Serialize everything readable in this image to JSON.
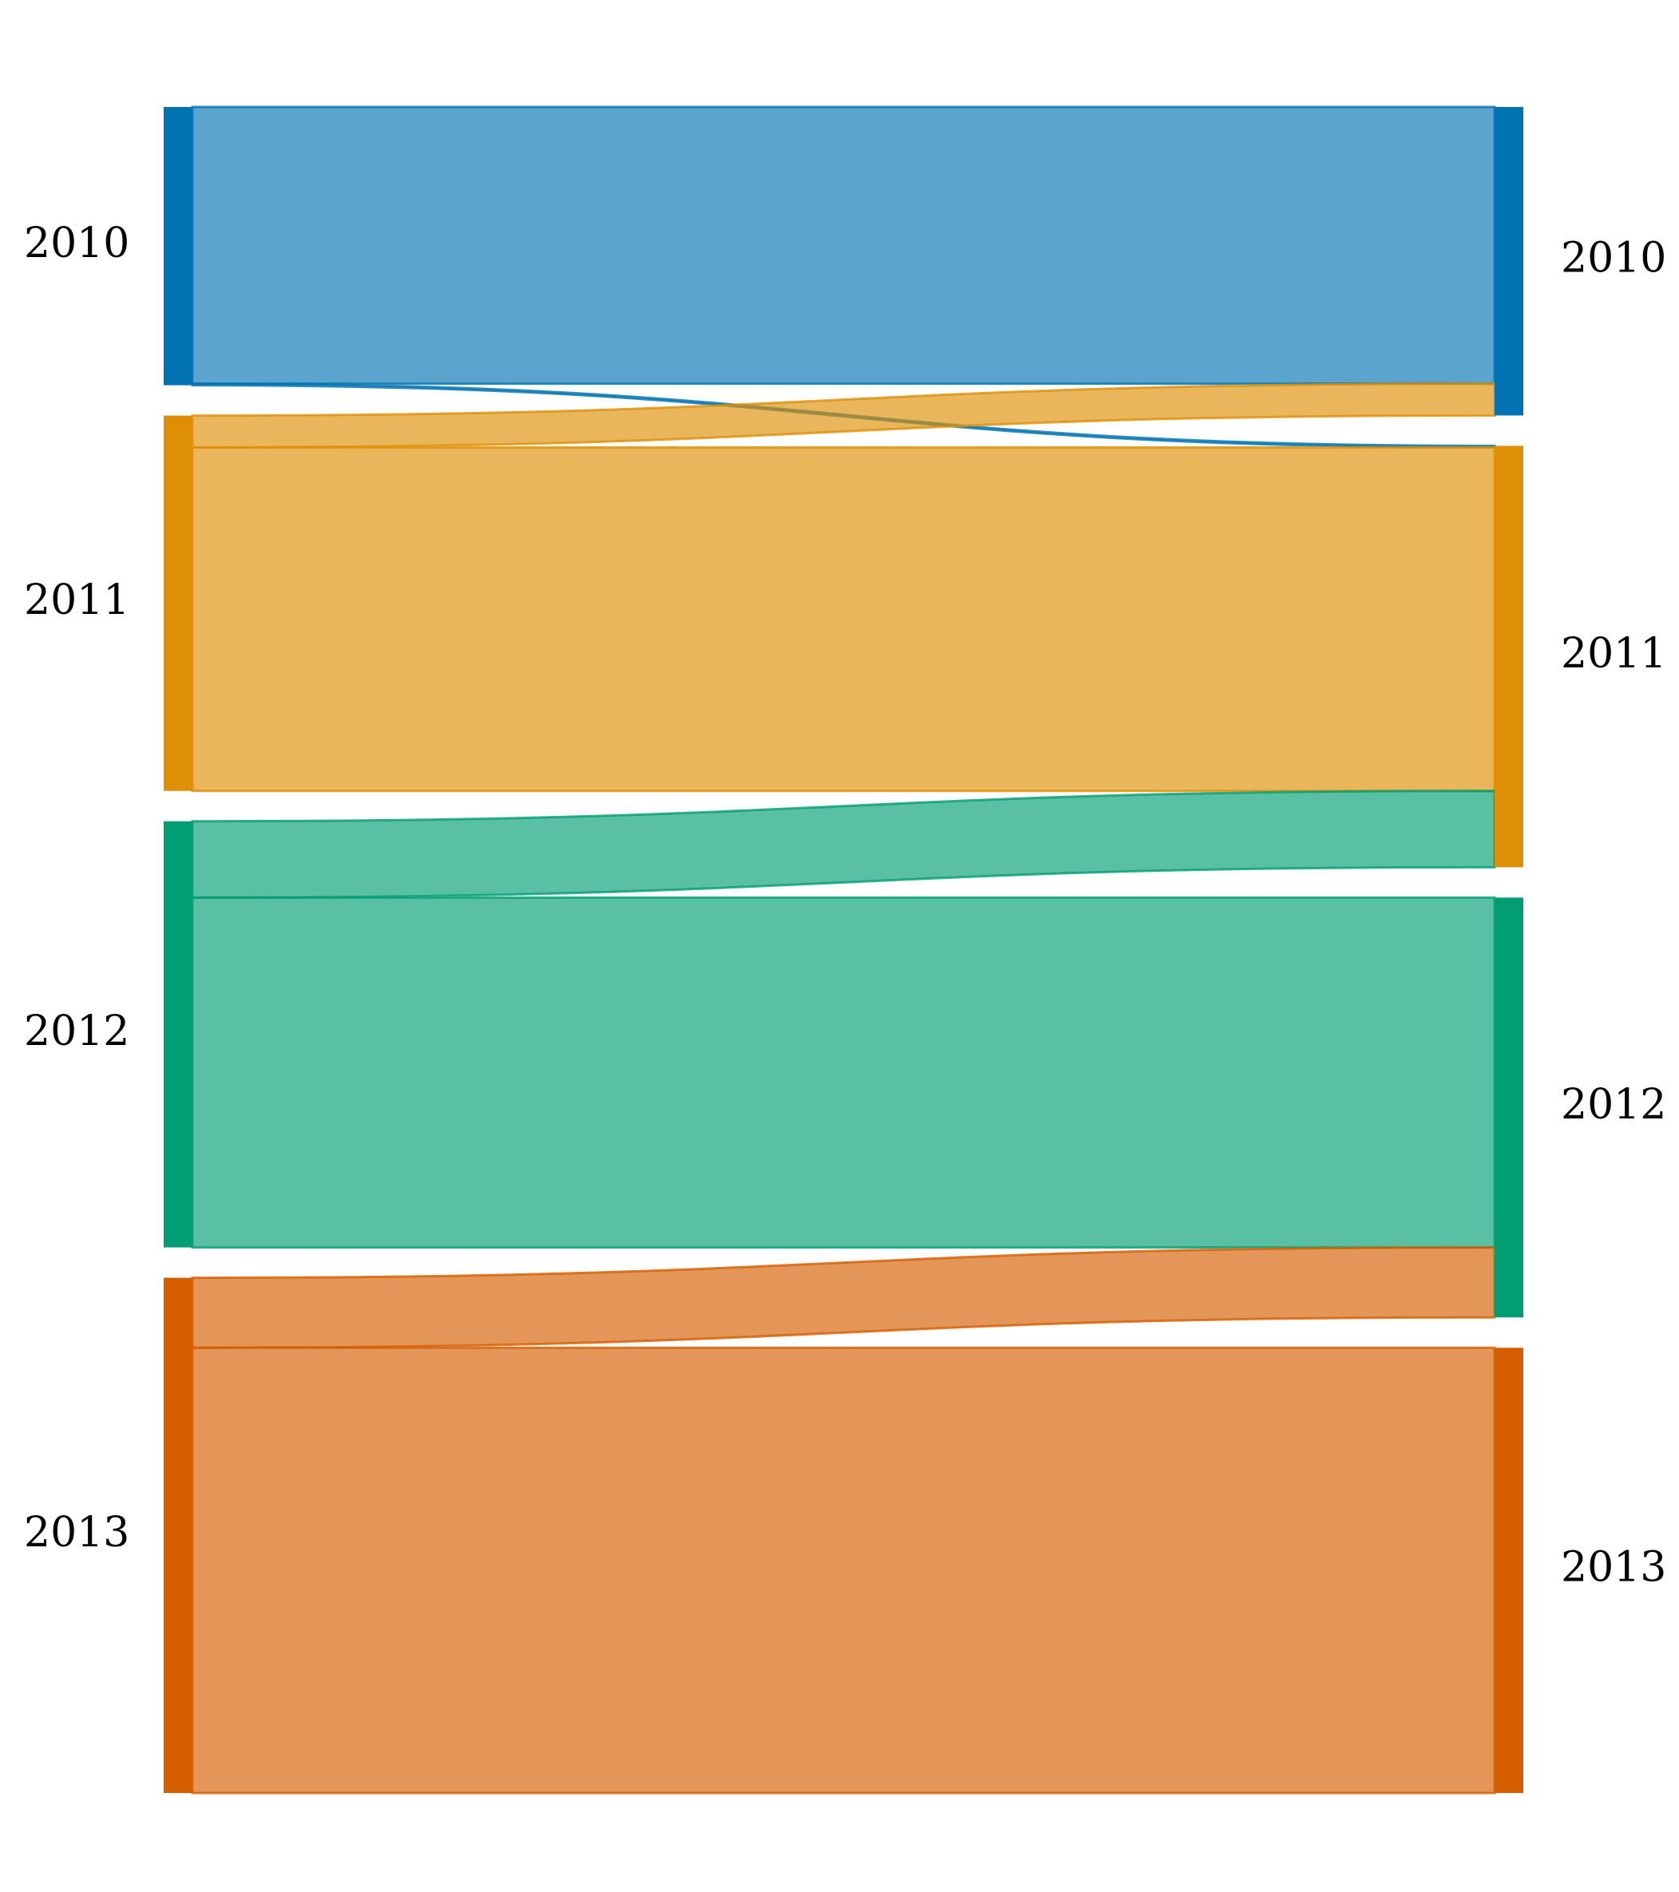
{
  "chart_data": {
    "type": "sankey",
    "left_nodes": [
      {
        "label": "2010",
        "color": "#0173b2"
      },
      {
        "label": "2011",
        "color": "#de8f05"
      },
      {
        "label": "2012",
        "color": "#029e73"
      },
      {
        "label": "2013",
        "color": "#d55e00"
      }
    ],
    "right_nodes": [
      {
        "label": "2010",
        "color": "#0173b2"
      },
      {
        "label": "2011",
        "color": "#de8f05"
      },
      {
        "label": "2012",
        "color": "#029e73"
      },
      {
        "label": "2013",
        "color": "#d55e00"
      }
    ],
    "flows": [
      {
        "source": "2010",
        "target": "2010",
        "value": 87,
        "color": "#0173b2"
      },
      {
        "source": "2010",
        "target": "2011",
        "value": 0.5,
        "color": "#0173b2"
      },
      {
        "source": "2011",
        "target": "2010",
        "value": 10,
        "color": "#de8f05"
      },
      {
        "source": "2011",
        "target": "2011",
        "value": 108,
        "color": "#de8f05"
      },
      {
        "source": "2012",
        "target": "2011",
        "value": 24,
        "color": "#029e73"
      },
      {
        "source": "2012",
        "target": "2012",
        "value": 110,
        "color": "#029e73"
      },
      {
        "source": "2013",
        "target": "2012",
        "value": 22,
        "color": "#d55e00"
      },
      {
        "source": "2013",
        "target": "2013",
        "value": 140,
        "color": "#d55e00"
      }
    ]
  }
}
